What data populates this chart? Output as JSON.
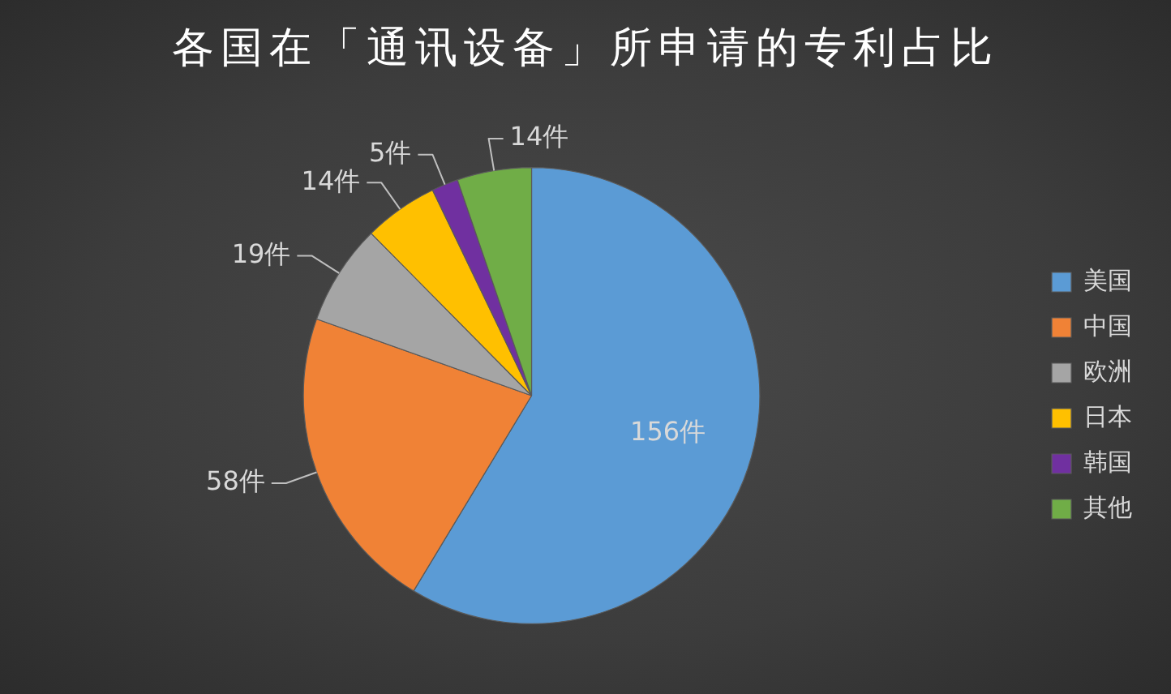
{
  "chart_data": {
    "type": "pie",
    "title": "各国在「通讯设备」所申请的专利占比",
    "categories": [
      "美国",
      "中国",
      "欧洲",
      "日本",
      "韩国",
      "其他"
    ],
    "values": [
      156,
      58,
      19,
      14,
      5,
      14
    ],
    "colors": [
      "#5b9bd5",
      "#f08236",
      "#a5a5a5",
      "#ffc000",
      "#7030a0",
      "#70ad47"
    ],
    "value_labels": [
      "156件",
      "58件",
      "19件",
      "14件",
      "5件",
      "14件"
    ],
    "legend": "right"
  }
}
